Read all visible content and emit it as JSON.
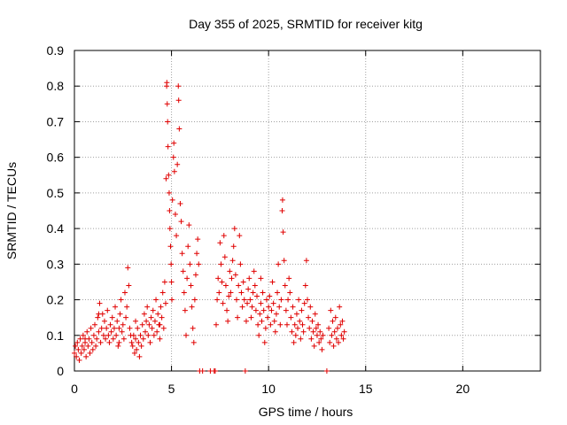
{
  "chart_data": {
    "type": "scatter",
    "title": "Day 355 of 2025, SRMTID for receiver kitg",
    "xlabel": "GPS time / hours",
    "ylabel": "SRMTID / TECUs",
    "xlim": [
      0,
      24
    ],
    "ylim": [
      0,
      0.9
    ],
    "xticks": [
      0,
      5,
      10,
      15,
      20
    ],
    "yticks": [
      0,
      0.1,
      0.2,
      0.3,
      0.4,
      0.5,
      0.6,
      0.7,
      0.8,
      0.9
    ],
    "xtick_labels": [
      "0",
      "5",
      "10",
      "15",
      "20"
    ],
    "ytick_labels": [
      "0",
      "0.1",
      "0.2",
      "0.3",
      "0.4",
      "0.5",
      "0.6",
      "0.7",
      "0.8",
      "0.9"
    ],
    "grid": true,
    "marker": "+",
    "series_color": "#e00000",
    "series": [
      {
        "name": "SRMTID",
        "points": [
          [
            0.0,
            0.05
          ],
          [
            0.05,
            0.07
          ],
          [
            0.1,
            0.04
          ],
          [
            0.15,
            0.08
          ],
          [
            0.2,
            0.06
          ],
          [
            0.25,
            0.03
          ],
          [
            0.3,
            0.09
          ],
          [
            0.35,
            0.05
          ],
          [
            0.4,
            0.07
          ],
          [
            0.45,
            0.1
          ],
          [
            0.5,
            0.06
          ],
          [
            0.55,
            0.08
          ],
          [
            0.6,
            0.04
          ],
          [
            0.65,
            0.11
          ],
          [
            0.7,
            0.07
          ],
          [
            0.75,
            0.09
          ],
          [
            0.8,
            0.05
          ],
          [
            0.85,
            0.12
          ],
          [
            0.9,
            0.08
          ],
          [
            0.95,
            0.06
          ],
          [
            1.0,
            0.1
          ],
          [
            1.05,
            0.13
          ],
          [
            1.1,
            0.07
          ],
          [
            1.15,
            0.09
          ],
          [
            1.2,
            0.15
          ],
          [
            1.25,
            0.11
          ],
          [
            1.3,
            0.19
          ],
          [
            1.35,
            0.08
          ],
          [
            1.4,
            0.12
          ],
          [
            1.45,
            0.16
          ],
          [
            1.5,
            0.1
          ],
          [
            1.55,
            0.14
          ],
          [
            1.6,
            0.09
          ],
          [
            1.65,
            0.12
          ],
          [
            1.7,
            0.17
          ],
          [
            1.75,
            0.1
          ],
          [
            1.8,
            0.08
          ],
          [
            1.85,
            0.13
          ],
          [
            1.9,
            0.11
          ],
          [
            1.95,
            0.15
          ],
          [
            2.0,
            0.09
          ],
          [
            2.05,
            0.12
          ],
          [
            2.1,
            0.18
          ],
          [
            2.15,
            0.1
          ],
          [
            2.2,
            0.14
          ],
          [
            2.25,
            0.07
          ],
          [
            2.3,
            0.12
          ],
          [
            2.35,
            0.16
          ],
          [
            2.4,
            0.2
          ],
          [
            2.45,
            0.11
          ],
          [
            2.5,
            0.13
          ],
          [
            2.55,
            0.09
          ],
          [
            2.6,
            0.22
          ],
          [
            2.65,
            0.15
          ],
          [
            2.7,
            0.18
          ],
          [
            2.75,
            0.29
          ],
          [
            2.8,
            0.24
          ],
          [
            2.85,
            0.12
          ],
          [
            2.9,
            0.1
          ],
          [
            2.95,
            0.08
          ],
          [
            3.0,
            0.07
          ],
          [
            3.05,
            0.1
          ],
          [
            3.1,
            0.05
          ],
          [
            3.15,
            0.09
          ],
          [
            3.2,
            0.06
          ],
          [
            3.25,
            0.12
          ],
          [
            3.3,
            0.08
          ],
          [
            3.35,
            0.04
          ],
          [
            3.4,
            0.1
          ],
          [
            3.45,
            0.07
          ],
          [
            3.5,
            0.13
          ],
          [
            3.55,
            0.09
          ],
          [
            3.6,
            0.16
          ],
          [
            3.65,
            0.11
          ],
          [
            3.7,
            0.14
          ],
          [
            3.75,
            0.18
          ],
          [
            3.8,
            0.1
          ],
          [
            3.85,
            0.13
          ],
          [
            3.9,
            0.08
          ],
          [
            3.95,
            0.15
          ],
          [
            4.0,
            0.12
          ],
          [
            4.05,
            0.17
          ],
          [
            4.1,
            0.1
          ],
          [
            4.15,
            0.14
          ],
          [
            4.2,
            0.2
          ],
          [
            4.25,
            0.11
          ],
          [
            4.3,
            0.16
          ],
          [
            4.35,
            0.13
          ],
          [
            4.4,
            0.09
          ],
          [
            4.45,
            0.18
          ],
          [
            4.5,
            0.15
          ],
          [
            4.55,
            0.22
          ],
          [
            4.6,
            0.12
          ],
          [
            4.65,
            0.25
          ],
          [
            4.7,
            0.19
          ],
          [
            4.72,
            0.54
          ],
          [
            4.75,
            0.8
          ],
          [
            4.76,
            0.81
          ],
          [
            4.78,
            0.75
          ],
          [
            4.8,
            0.7
          ],
          [
            4.82,
            0.63
          ],
          [
            4.85,
            0.55
          ],
          [
            4.88,
            0.5
          ],
          [
            4.9,
            0.45
          ],
          [
            4.92,
            0.4
          ],
          [
            4.95,
            0.35
          ],
          [
            4.98,
            0.3
          ],
          [
            5.0,
            0.25
          ],
          [
            5.02,
            0.2
          ],
          [
            5.05,
            0.48
          ],
          [
            5.1,
            0.6
          ],
          [
            5.12,
            0.64
          ],
          [
            5.15,
            0.56
          ],
          [
            5.2,
            0.44
          ],
          [
            5.25,
            0.38
          ],
          [
            5.3,
            0.58
          ],
          [
            5.35,
            0.8
          ],
          [
            5.37,
            0.76
          ],
          [
            5.4,
            0.68
          ],
          [
            5.45,
            0.47
          ],
          [
            5.5,
            0.42
          ],
          [
            5.55,
            0.33
          ],
          [
            5.6,
            0.28
          ],
          [
            5.65,
            0.22
          ],
          [
            5.7,
            0.17
          ],
          [
            5.75,
            0.1
          ],
          [
            5.8,
            0.26
          ],
          [
            5.85,
            0.35
          ],
          [
            5.9,
            0.41
          ],
          [
            5.95,
            0.3
          ],
          [
            6.0,
            0.24
          ],
          [
            6.05,
            0.18
          ],
          [
            6.1,
            0.12
          ],
          [
            6.15,
            0.08
          ],
          [
            6.2,
            0.2
          ],
          [
            6.25,
            0.27
          ],
          [
            6.3,
            0.33
          ],
          [
            6.35,
            0.37
          ],
          [
            6.4,
            0.3
          ],
          [
            6.45,
            0.0
          ],
          [
            7.2,
            0.0
          ],
          [
            7.25,
            0.0
          ],
          [
            7.3,
            0.13
          ],
          [
            7.35,
            0.2
          ],
          [
            7.4,
            0.26
          ],
          [
            7.45,
            0.22
          ],
          [
            7.5,
            0.36
          ],
          [
            7.55,
            0.3
          ],
          [
            7.6,
            0.25
          ],
          [
            7.65,
            0.19
          ],
          [
            7.7,
            0.38
          ],
          [
            7.75,
            0.32
          ],
          [
            7.8,
            0.24
          ],
          [
            7.85,
            0.17
          ],
          [
            7.9,
            0.14
          ],
          [
            7.95,
            0.21
          ],
          [
            8.0,
            0.28
          ],
          [
            8.05,
            0.22
          ],
          [
            8.1,
            0.26
          ],
          [
            8.15,
            0.31
          ],
          [
            8.2,
            0.35
          ],
          [
            8.25,
            0.4
          ],
          [
            8.3,
            0.27
          ],
          [
            8.35,
            0.2
          ],
          [
            8.4,
            0.15
          ],
          [
            8.45,
            0.24
          ],
          [
            8.5,
            0.38
          ],
          [
            8.55,
            0.3
          ],
          [
            8.6,
            0.22
          ],
          [
            8.65,
            0.18
          ],
          [
            8.7,
            0.25
          ],
          [
            8.75,
            0.2
          ],
          [
            8.8,
            0.0
          ],
          [
            8.85,
            0.14
          ],
          [
            8.9,
            0.19
          ],
          [
            8.95,
            0.23
          ],
          [
            9.0,
            0.26
          ],
          [
            9.05,
            0.2
          ],
          [
            9.1,
            0.15
          ],
          [
            9.15,
            0.18
          ],
          [
            9.2,
            0.22
          ],
          [
            9.25,
            0.28
          ],
          [
            9.3,
            0.24
          ],
          [
            9.35,
            0.17
          ],
          [
            9.4,
            0.21
          ],
          [
            9.45,
            0.13
          ],
          [
            9.5,
            0.1
          ],
          [
            9.55,
            0.16
          ],
          [
            9.6,
            0.19
          ],
          [
            9.65,
            0.14
          ],
          [
            9.7,
            0.22
          ],
          [
            9.75,
            0.17
          ],
          [
            9.8,
            0.08
          ],
          [
            9.85,
            0.12
          ],
          [
            9.9,
            0.2
          ],
          [
            9.95,
            0.15
          ],
          [
            10.0,
            0.18
          ],
          [
            10.05,
            0.21
          ],
          [
            10.1,
            0.13
          ],
          [
            10.15,
            0.17
          ],
          [
            10.2,
            0.25
          ],
          [
            10.25,
            0.19
          ],
          [
            10.3,
            0.14
          ],
          [
            10.35,
            0.11
          ],
          [
            10.4,
            0.16
          ],
          [
            10.45,
            0.22
          ],
          [
            10.5,
            0.3
          ],
          [
            10.55,
            0.18
          ],
          [
            10.6,
            0.13
          ],
          [
            10.65,
            0.2
          ],
          [
            10.7,
            0.45
          ],
          [
            10.72,
            0.48
          ],
          [
            10.75,
            0.39
          ],
          [
            10.8,
            0.31
          ],
          [
            10.85,
            0.24
          ],
          [
            10.9,
            0.17
          ],
          [
            10.95,
            0.13
          ],
          [
            11.0,
            0.2
          ],
          [
            11.05,
            0.26
          ],
          [
            11.1,
            0.22
          ],
          [
            11.15,
            0.15
          ],
          [
            11.2,
            0.11
          ],
          [
            11.25,
            0.18
          ],
          [
            11.3,
            0.08
          ],
          [
            11.35,
            0.13
          ],
          [
            11.4,
            0.1
          ],
          [
            11.45,
            0.16
          ],
          [
            11.5,
            0.12
          ],
          [
            11.55,
            0.2
          ],
          [
            11.6,
            0.14
          ],
          [
            11.65,
            0.09
          ],
          [
            11.7,
            0.17
          ],
          [
            11.75,
            0.13
          ],
          [
            11.8,
            0.11
          ],
          [
            11.85,
            0.19
          ],
          [
            11.9,
            0.24
          ],
          [
            11.95,
            0.31
          ],
          [
            12.0,
            0.2
          ],
          [
            12.05,
            0.15
          ],
          [
            12.1,
            0.12
          ],
          [
            12.15,
            0.18
          ],
          [
            12.2,
            0.09
          ],
          [
            12.25,
            0.14
          ],
          [
            12.3,
            0.11
          ],
          [
            12.35,
            0.07
          ],
          [
            12.4,
            0.16
          ],
          [
            12.45,
            0.12
          ],
          [
            12.5,
            0.1
          ],
          [
            12.55,
            0.13
          ],
          [
            12.6,
            0.08
          ],
          [
            12.65,
            0.11
          ],
          [
            12.7,
            0.09
          ],
          [
            12.75,
            0.06
          ],
          [
            12.8,
            0.1
          ],
          [
            13.0,
            0.0
          ],
          [
            13.1,
            0.12
          ],
          [
            13.15,
            0.08
          ],
          [
            13.2,
            0.17
          ],
          [
            13.25,
            0.1
          ],
          [
            13.3,
            0.14
          ],
          [
            13.35,
            0.07
          ],
          [
            13.4,
            0.11
          ],
          [
            13.45,
            0.15
          ],
          [
            13.5,
            0.09
          ],
          [
            13.55,
            0.12
          ],
          [
            13.6,
            0.08
          ],
          [
            13.65,
            0.18
          ],
          [
            13.7,
            0.13
          ],
          [
            13.75,
            0.1
          ],
          [
            13.8,
            0.14
          ],
          [
            13.85,
            0.09
          ],
          [
            13.9,
            0.11
          ],
          [
            6.6,
            0.0
          ],
          [
            7.0,
            0.0
          ],
          [
            1.25,
            0.16
          ],
          [
            2.3,
            0.08
          ],
          [
            3.15,
            0.14
          ],
          [
            4.4,
            0.13
          ],
          [
            0.55,
            0.09
          ],
          [
            9.6,
            0.26
          ]
        ]
      }
    ]
  }
}
